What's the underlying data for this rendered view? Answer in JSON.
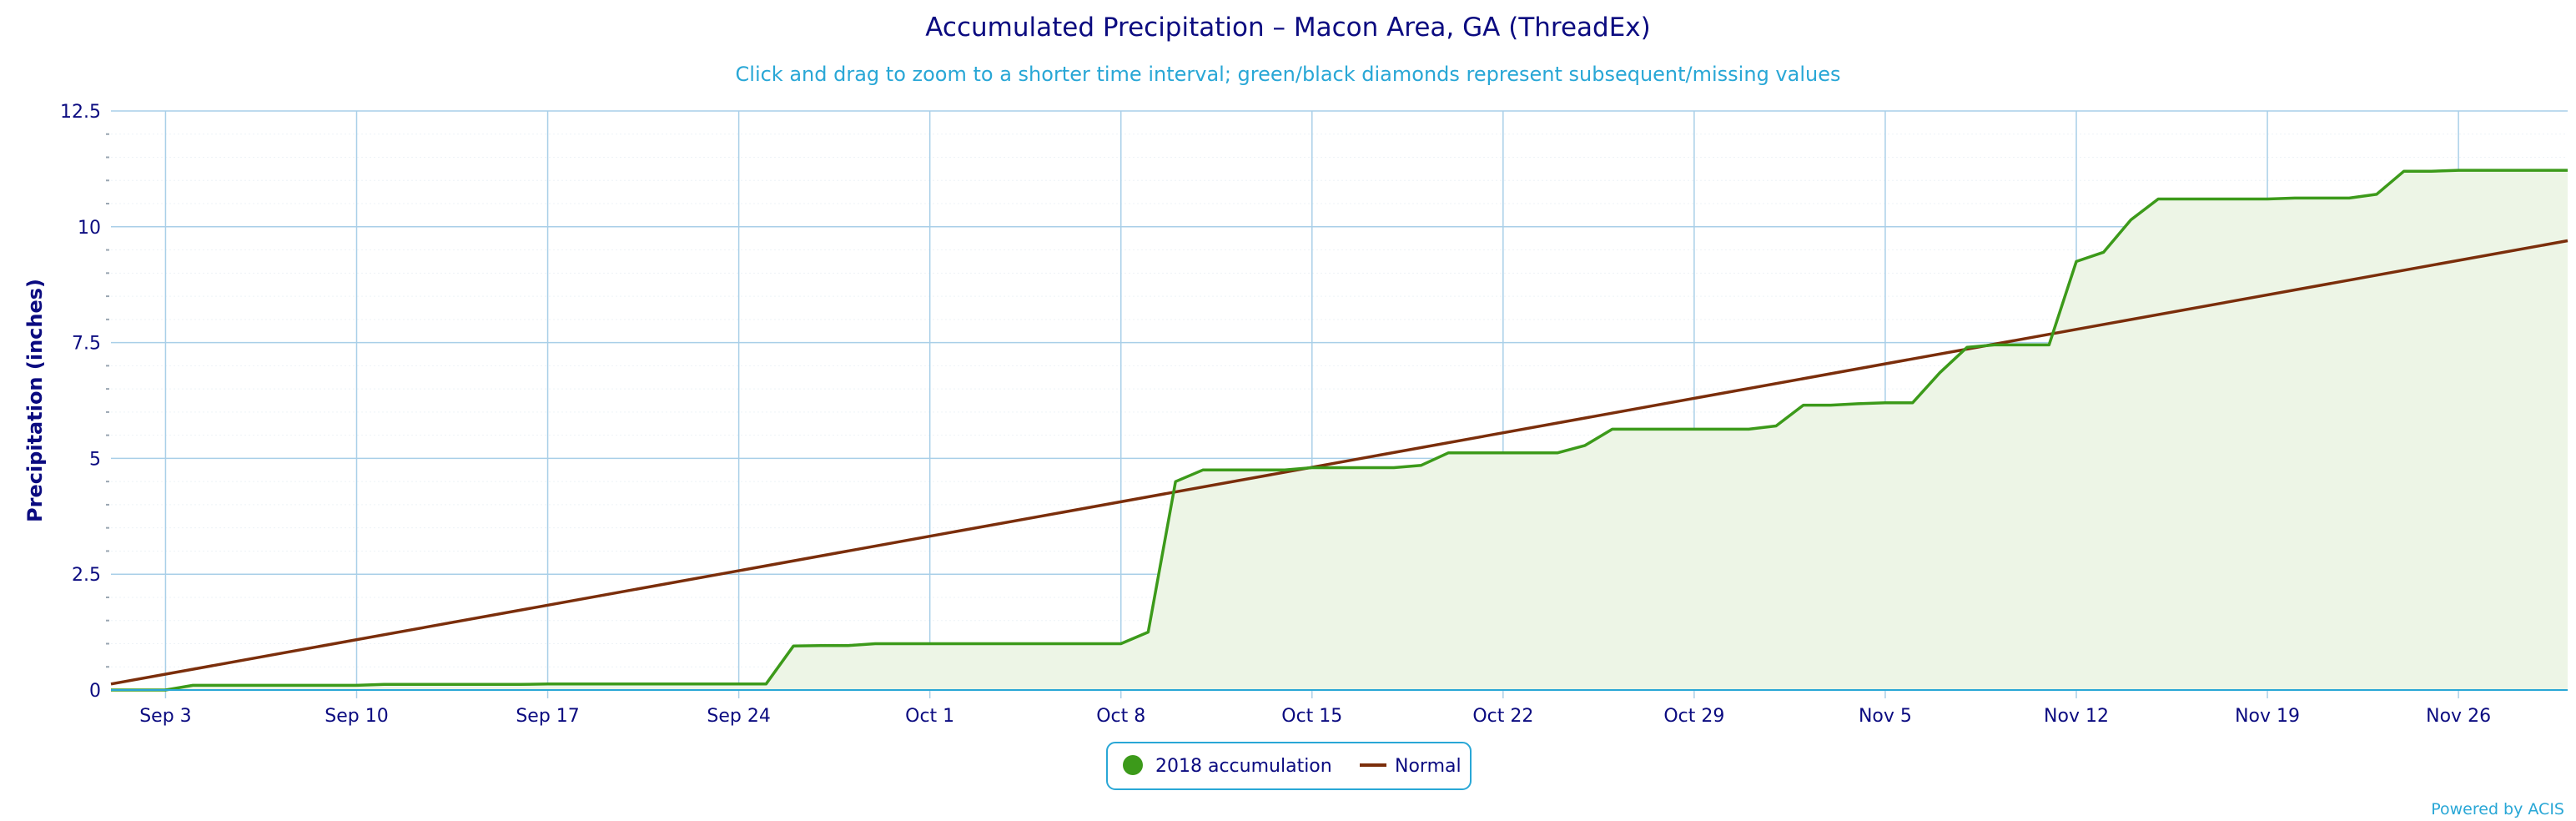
{
  "title": "Accumulated Precipitation – Macon Area, GA (ThreadEx)",
  "subtitle": "Click and drag to zoom to a shorter time interval; green/black diamonds represent subsequent/missing values",
  "credit": "Powered by ACIS",
  "colors": {
    "title": "#0b0b80",
    "subtitle": "#29a7d6",
    "grid": "#a9cfe8",
    "accumulation_line": "#3c9a1a",
    "accumulation_fill": "#edf5e6",
    "normal_line": "#7b2e0b"
  },
  "chart_data": {
    "type": "line",
    "title": "Accumulated Precipitation – Macon Area, GA (ThreadEx)",
    "ylabel": "Precipitation (inches)",
    "xlabel": "",
    "ylim": [
      0,
      12.5
    ],
    "xlim": [
      "2018-09-01",
      "2018-11-30"
    ],
    "yticks": [
      0,
      2.5,
      5,
      7.5,
      10,
      12.5
    ],
    "ytick_labels": [
      "0",
      "2.5",
      "5",
      "7.5",
      "10",
      "12.5"
    ],
    "xticks": [
      "2018-09-03",
      "2018-09-10",
      "2018-09-17",
      "2018-09-24",
      "2018-10-01",
      "2018-10-08",
      "2018-10-15",
      "2018-10-22",
      "2018-10-29",
      "2018-11-05",
      "2018-11-12",
      "2018-11-19",
      "2018-11-26"
    ],
    "xtick_labels": [
      "Sep 3",
      "Sep 10",
      "Sep 17",
      "Sep 24",
      "Oct 1",
      "Oct 8",
      "Oct 15",
      "Oct 22",
      "Oct 29",
      "Nov 5",
      "Nov 12",
      "Nov 19",
      "Nov 26"
    ],
    "grid": true,
    "legend_position": "bottom-center",
    "series": [
      {
        "name": "2018 accumulation",
        "style": "area-line",
        "x": [
          "2018-09-01",
          "2018-09-02",
          "2018-09-03",
          "2018-09-04",
          "2018-09-05",
          "2018-09-06",
          "2018-09-07",
          "2018-09-08",
          "2018-09-09",
          "2018-09-10",
          "2018-09-11",
          "2018-09-12",
          "2018-09-13",
          "2018-09-14",
          "2018-09-15",
          "2018-09-16",
          "2018-09-17",
          "2018-09-18",
          "2018-09-19",
          "2018-09-20",
          "2018-09-21",
          "2018-09-22",
          "2018-09-23",
          "2018-09-24",
          "2018-09-25",
          "2018-09-26",
          "2018-09-27",
          "2018-09-28",
          "2018-09-29",
          "2018-09-30",
          "2018-10-01",
          "2018-10-02",
          "2018-10-03",
          "2018-10-04",
          "2018-10-05",
          "2018-10-06",
          "2018-10-07",
          "2018-10-08",
          "2018-10-09",
          "2018-10-10",
          "2018-10-11",
          "2018-10-12",
          "2018-10-13",
          "2018-10-14",
          "2018-10-15",
          "2018-10-16",
          "2018-10-17",
          "2018-10-18",
          "2018-10-19",
          "2018-10-20",
          "2018-10-21",
          "2018-10-22",
          "2018-10-23",
          "2018-10-24",
          "2018-10-25",
          "2018-10-26",
          "2018-10-27",
          "2018-10-28",
          "2018-10-29",
          "2018-10-30",
          "2018-10-31",
          "2018-11-01",
          "2018-11-02",
          "2018-11-03",
          "2018-11-04",
          "2018-11-05",
          "2018-11-06",
          "2018-11-07",
          "2018-11-08",
          "2018-11-09",
          "2018-11-10",
          "2018-11-11",
          "2018-11-12",
          "2018-11-13",
          "2018-11-14",
          "2018-11-15",
          "2018-11-16",
          "2018-11-17",
          "2018-11-18",
          "2018-11-19",
          "2018-11-20",
          "2018-11-21",
          "2018-11-22",
          "2018-11-23",
          "2018-11-24",
          "2018-11-25",
          "2018-11-26",
          "2018-11-27",
          "2018-11-28",
          "2018-11-29",
          "2018-11-30"
        ],
        "values": [
          0.0,
          0.0,
          0.0,
          0.1,
          0.1,
          0.1,
          0.1,
          0.1,
          0.1,
          0.1,
          0.12,
          0.12,
          0.12,
          0.12,
          0.12,
          0.12,
          0.13,
          0.13,
          0.13,
          0.13,
          0.13,
          0.13,
          0.13,
          0.13,
          0.13,
          0.95,
          0.96,
          0.96,
          1.0,
          1.0,
          1.0,
          1.0,
          1.0,
          1.0,
          1.0,
          1.0,
          1.0,
          1.0,
          1.25,
          4.5,
          4.75,
          4.75,
          4.75,
          4.75,
          4.8,
          4.8,
          4.8,
          4.8,
          4.85,
          5.12,
          5.12,
          5.12,
          5.12,
          5.12,
          5.28,
          5.63,
          5.63,
          5.63,
          5.63,
          5.63,
          5.63,
          5.7,
          6.15,
          6.15,
          6.18,
          6.2,
          6.2,
          6.85,
          7.4,
          7.45,
          7.45,
          7.45,
          9.25,
          9.45,
          10.15,
          10.6,
          10.6,
          10.6,
          10.6,
          10.6,
          10.62,
          10.62,
          10.62,
          10.7,
          11.2,
          11.2,
          11.22,
          11.22,
          11.22,
          11.22,
          11.22
        ]
      },
      {
        "name": "Normal",
        "style": "line",
        "x": [
          "2018-09-01",
          "2018-11-30"
        ],
        "values": [
          0.13,
          9.7
        ]
      }
    ]
  }
}
